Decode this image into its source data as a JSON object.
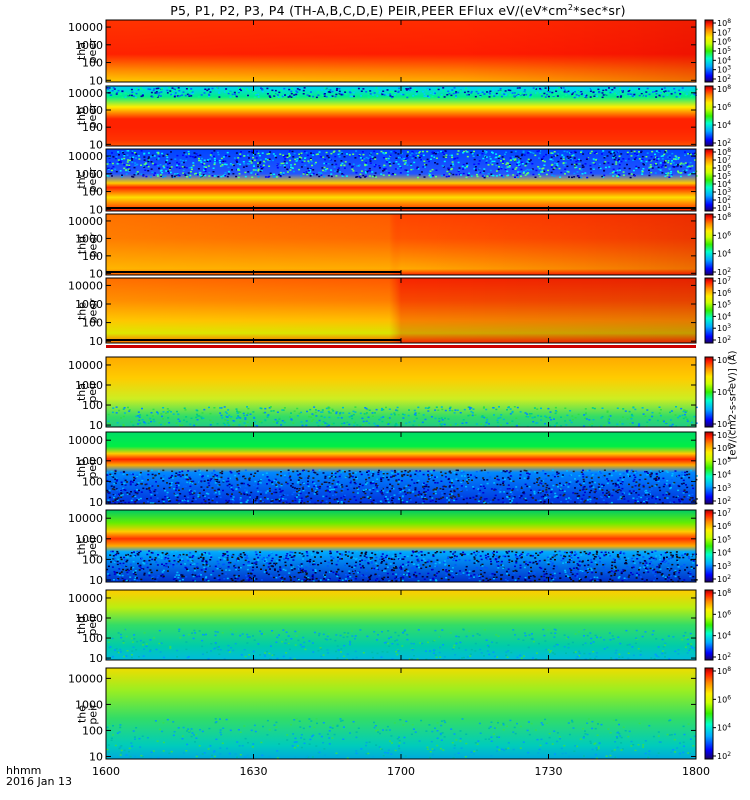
{
  "title": {
    "main": "P5, P1, P2, P3, P4 (TH-A,B,C,D,E) PEIR,PEER EFlux eV/(eV*cm",
    "sup": "2",
    "tail": "*sec*sr)"
  },
  "footer": {
    "time_format": "hhmm",
    "date": "2016 Jan 13"
  },
  "colorbar_units": "[eV/(cm2-s-sr-eV)]  (A)",
  "colors": {
    "red": "#ff1a00",
    "orange": "#ff8c00",
    "yellow": "#ffee00",
    "green": "#33dd33",
    "cyan": "#00c8ff",
    "blue": "#0040ff",
    "dark_blue": "#000080",
    "fill_flag": "#cc0000"
  },
  "chart_data": {
    "type": "heatmap",
    "xlabel": "",
    "x_range": [
      "1600",
      "1800"
    ],
    "x_ticks": [
      "1600",
      "1630",
      "1700",
      "1730",
      "1800"
    ],
    "y_scale": "log",
    "y_ticks": [
      "10",
      "100",
      "1000",
      "10000"
    ],
    "colorbar_scale": "log",
    "panels": [
      {
        "probe": "tha",
        "species": "peer",
        "label_top": "tha",
        "label_bottom": "peer",
        "colorbar_ticks": [
          "10^2",
          "10^3",
          "10^4",
          "10^5",
          "10^6",
          "10^7",
          "10^8"
        ]
      },
      {
        "probe": "thb",
        "species": "peer",
        "label_top": "thb",
        "label_bottom": "peer",
        "colorbar_ticks": [
          "10^2",
          "10^4",
          "10^6",
          "10^8"
        ]
      },
      {
        "probe": "thc",
        "species": "peer",
        "label_top": "thc",
        "label_bottom": "peer",
        "colorbar_ticks": [
          "10^1",
          "10^2",
          "10^3",
          "10^4",
          "10^5",
          "10^6",
          "10^7",
          "10^8"
        ]
      },
      {
        "probe": "thd",
        "species": "peer",
        "label_top": "thd",
        "label_bottom": "peer",
        "colorbar_ticks": [
          "10^2",
          "10^4",
          "10^6",
          "10^8"
        ]
      },
      {
        "probe": "the",
        "species": "peer",
        "label_top": "the",
        "label_bottom": "peer",
        "colorbar_ticks": [
          "10^2",
          "10^3",
          "10^4",
          "10^5",
          "10^6",
          "10^7"
        ]
      },
      {
        "probe": "tha",
        "species": "peir",
        "label_top": "tha",
        "label_bottom": "peir",
        "colorbar_ticks": [
          "10^2",
          "10^4",
          "10^6"
        ]
      },
      {
        "probe": "thb",
        "species": "peir",
        "label_top": "thb",
        "label_bottom": "peir",
        "colorbar_ticks": [
          "10^2",
          "10^3",
          "10^4",
          "10^5",
          "10^6",
          "10^7"
        ]
      },
      {
        "probe": "thc",
        "species": "peir",
        "label_top": "thc",
        "label_bottom": "peir",
        "colorbar_ticks": [
          "10^2",
          "10^3",
          "10^4",
          "10^5",
          "10^6",
          "10^7"
        ]
      },
      {
        "probe": "thd",
        "species": "peir",
        "label_top": "thd",
        "label_bottom": "peir",
        "colorbar_ticks": [
          "10^2",
          "10^4",
          "10^6",
          "10^8"
        ]
      },
      {
        "probe": "the",
        "species": "peir",
        "label_top": "the",
        "label_bottom": "peir",
        "colorbar_ticks": [
          "10^2",
          "10^4",
          "10^6",
          "10^8"
        ]
      }
    ]
  }
}
